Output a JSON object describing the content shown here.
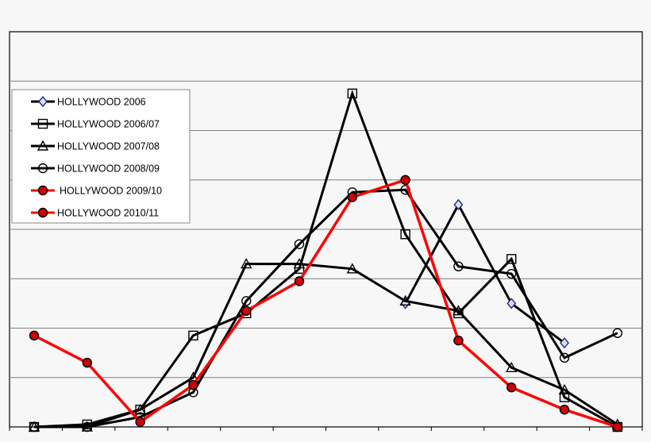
{
  "chart_data": {
    "type": "line",
    "title": "",
    "xlabel": "",
    "ylabel": "",
    "x_positions": 12,
    "ylim": [
      0,
      8
    ],
    "grid": true,
    "legend_position": "top-left",
    "series": [
      {
        "name": "HOLLYWOOD 2006",
        "color": "#000000",
        "marker": "diamond",
        "marker_stroke": "#1f2a8a",
        "marker_fill": "#dde0f0",
        "points": [
          [
            7,
            2.5
          ],
          [
            8,
            4.5
          ],
          [
            9,
            2.5
          ],
          [
            10,
            1.7
          ]
        ]
      },
      {
        "name": "HOLLYWOOD 2006/07",
        "color": "#000000",
        "marker": "square",
        "marker_stroke": "#000000",
        "marker_fill": "none",
        "points": [
          [
            0,
            0
          ],
          [
            1,
            0.05
          ],
          [
            2,
            0.35
          ],
          [
            3,
            1.85
          ],
          [
            4,
            2.3
          ],
          [
            5,
            3.2
          ],
          [
            6,
            6.75
          ],
          [
            7,
            3.9
          ],
          [
            8,
            2.3
          ],
          [
            9,
            3.4
          ],
          [
            10,
            0.6
          ],
          [
            11,
            0
          ]
        ]
      },
      {
        "name": "HOLLYWOOD 2007/08",
        "color": "#000000",
        "marker": "triangle",
        "marker_stroke": "#000000",
        "marker_fill": "none",
        "points": [
          [
            0,
            0
          ],
          [
            1,
            0
          ],
          [
            2,
            0.35
          ],
          [
            3,
            1.0
          ],
          [
            4,
            3.3
          ],
          [
            5,
            3.3
          ],
          [
            6,
            3.2
          ],
          [
            7,
            2.55
          ],
          [
            8,
            2.35
          ],
          [
            9,
            1.2
          ],
          [
            10,
            0.75
          ],
          [
            11,
            0.05
          ]
        ]
      },
      {
        "name": "HOLLYWOOD 2008/09",
        "color": "#000000",
        "marker": "circle",
        "marker_stroke": "#000000",
        "marker_fill": "none",
        "points": [
          [
            0,
            0
          ],
          [
            1,
            0
          ],
          [
            2,
            0.2
          ],
          [
            3,
            0.7
          ],
          [
            4,
            2.55
          ],
          [
            5,
            3.7
          ],
          [
            6,
            4.75
          ],
          [
            7,
            4.8
          ],
          [
            8,
            3.25
          ],
          [
            9,
            3.1
          ],
          [
            10,
            1.4
          ],
          [
            11,
            1.9
          ]
        ]
      },
      {
        "name": "HOLLYWOOD 2009/10",
        "color": "#ff0000",
        "marker": "circle",
        "marker_stroke": "#000000",
        "marker_fill": "#cc0000",
        "points": []
      },
      {
        "name": "HOLLYWOOD 2010/11",
        "color": "#ff0000",
        "marker": "circle",
        "marker_stroke": "#000000",
        "marker_fill": "#cc0000",
        "points": [
          [
            0,
            1.85
          ],
          [
            1,
            1.3
          ],
          [
            2,
            0.1
          ],
          [
            3,
            0.85
          ],
          [
            4,
            2.35
          ],
          [
            5,
            2.95
          ],
          [
            6,
            4.65
          ],
          [
            7,
            5.0
          ],
          [
            8,
            1.75
          ],
          [
            9,
            0.8
          ],
          [
            10,
            0.35
          ],
          [
            11,
            0
          ]
        ]
      }
    ]
  }
}
